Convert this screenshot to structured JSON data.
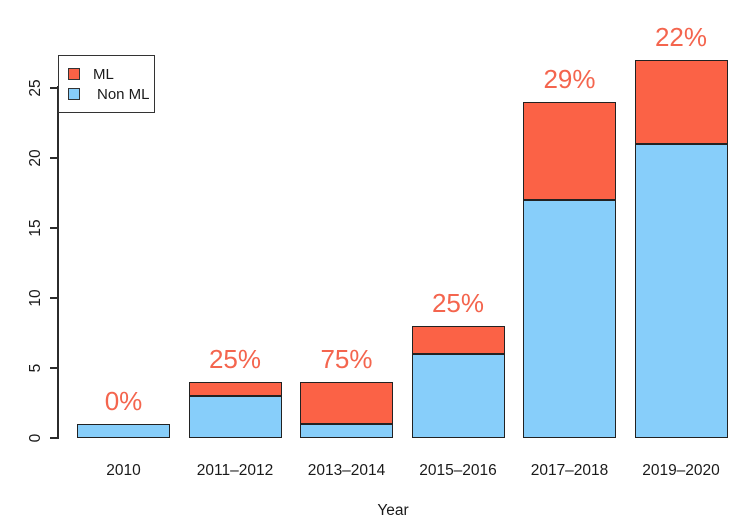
{
  "chart_data": {
    "type": "bar",
    "stacked": true,
    "title": "",
    "xlabel": "Year",
    "categories": [
      "2010",
      "2011–2012",
      "2013–2014",
      "2015–2016",
      "2017–2018",
      "2019–2020"
    ],
    "series": [
      {
        "name": "ML",
        "color": "#fb6246",
        "values": [
          0,
          1,
          3,
          2,
          7,
          6
        ]
      },
      {
        "name": "Non ML",
        "color": "#87cefa",
        "values": [
          1,
          3,
          1,
          6,
          17,
          21
        ]
      }
    ],
    "totals": [
      1,
      4,
      4,
      8,
      24,
      27
    ],
    "bar_labels": [
      "0%",
      "25%",
      "75%",
      "25%",
      "29%",
      "22%"
    ],
    "bar_label_color": "#f4654e",
    "yticks": [
      0,
      5,
      10,
      15,
      20,
      25
    ],
    "ylim": [
      0,
      27
    ],
    "grid": false,
    "legend_position": "top-left"
  }
}
